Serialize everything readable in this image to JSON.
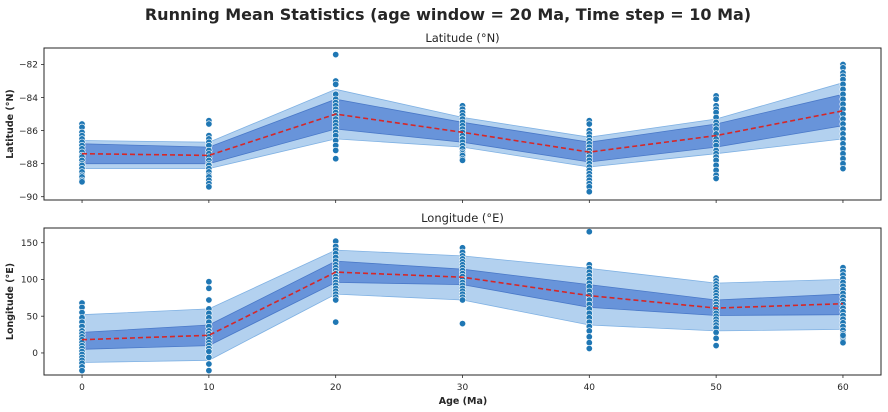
{
  "suptitle": "Running Mean Statistics (age window = 20 Ma, Time step = 10 Ma)",
  "xlabel": "Age (Ma)",
  "colors": {
    "points": "#1f77b4",
    "point_edge": "#ffffff",
    "outer_band": "#a6c9ec",
    "inner_band": "#5b8ad6",
    "mean_line": "#d62728"
  },
  "chart_data": [
    {
      "type": "scatter",
      "title": "Latitude (°N)",
      "ylabel": "Latitude (°N)",
      "xlim": [
        -3,
        63
      ],
      "ylim": [
        -90.2,
        -81
      ],
      "xticks": [
        0,
        10,
        20,
        30,
        40,
        50,
        60
      ],
      "yticks": [
        -90,
        -88,
        -86,
        -84,
        -82
      ],
      "show_xticklabels": false,
      "running_mean": {
        "x": [
          0,
          10,
          20,
          30,
          40,
          50,
          60
        ],
        "mean": [
          -87.4,
          -87.5,
          -85.0,
          -86.1,
          -87.3,
          -86.3,
          -84.8
        ],
        "inner_band": [
          [
            -88.0,
            -86.8
          ],
          [
            -88.0,
            -87.0
          ],
          [
            -85.9,
            -84.1
          ],
          [
            -86.7,
            -85.5
          ],
          [
            -87.9,
            -86.7
          ],
          [
            -87.0,
            -85.6
          ],
          [
            -85.7,
            -83.8
          ]
        ],
        "outer_band": [
          [
            -88.3,
            -86.6
          ],
          [
            -88.3,
            -86.7
          ],
          [
            -86.5,
            -83.5
          ],
          [
            -87.0,
            -85.2
          ],
          [
            -88.2,
            -86.4
          ],
          [
            -87.4,
            -85.3
          ],
          [
            -86.5,
            -83.1
          ]
        ]
      },
      "points": {
        "x": [
          0,
          0,
          0,
          0,
          0,
          0,
          0,
          0,
          0,
          0,
          0,
          0,
          0,
          0,
          0,
          0,
          0,
          0,
          0,
          0,
          10,
          10,
          10,
          10,
          10,
          10,
          10,
          10,
          10,
          10,
          10,
          10,
          10,
          10,
          10,
          10,
          10,
          10,
          10,
          20,
          20,
          20,
          20,
          20,
          20,
          20,
          20,
          20,
          20,
          20,
          20,
          20,
          20,
          20,
          20,
          20,
          20,
          20,
          20,
          30,
          30,
          30,
          30,
          30,
          30,
          30,
          30,
          30,
          30,
          30,
          30,
          30,
          30,
          30,
          30,
          30,
          30,
          30,
          40,
          40,
          40,
          40,
          40,
          40,
          40,
          40,
          40,
          40,
          40,
          40,
          40,
          40,
          40,
          40,
          40,
          40,
          40,
          40,
          40,
          50,
          50,
          50,
          50,
          50,
          50,
          50,
          50,
          50,
          50,
          50,
          50,
          50,
          50,
          50,
          50,
          50,
          50,
          50,
          50,
          50,
          60,
          60,
          60,
          60,
          60,
          60,
          60,
          60,
          60,
          60,
          60,
          60,
          60,
          60,
          60,
          60,
          60,
          60,
          60,
          60,
          60,
          60,
          60
        ],
        "y": [
          -85.6,
          -85.8,
          -86.1,
          -86.3,
          -86.5,
          -86.7,
          -86.9,
          -87.1,
          -87.3,
          -87.5,
          -87.6,
          -87.8,
          -88.0,
          -88.1,
          -88.3,
          -88.5,
          -88.7,
          -88.8,
          -89.0,
          -89.1,
          -85.4,
          -85.6,
          -86.3,
          -86.5,
          -86.7,
          -86.9,
          -87.2,
          -87.4,
          -87.6,
          -87.8,
          -88.0,
          -88.1,
          -88.3,
          -88.5,
          -88.7,
          -88.8,
          -89.0,
          -89.2,
          -89.4,
          -81.4,
          -83.0,
          -83.2,
          -83.8,
          -84.1,
          -84.3,
          -84.5,
          -84.7,
          -84.9,
          -85.1,
          -85.3,
          -85.5,
          -85.7,
          -85.9,
          -86.1,
          -86.3,
          -86.6,
          -86.9,
          -87.2,
          -87.7,
          -84.5,
          -84.7,
          -84.9,
          -85.1,
          -85.3,
          -85.5,
          -85.7,
          -85.9,
          -86.1,
          -86.3,
          -86.5,
          -86.7,
          -86.9,
          -87.1,
          -87.3,
          -87.4,
          -87.5,
          -87.7,
          -87.8,
          -85.4,
          -85.6,
          -86.0,
          -86.2,
          -86.4,
          -86.6,
          -86.8,
          -87.0,
          -87.2,
          -87.4,
          -87.6,
          -87.8,
          -88.0,
          -88.2,
          -88.4,
          -88.6,
          -88.8,
          -89.0,
          -89.2,
          -89.4,
          -89.7,
          -83.9,
          -84.1,
          -84.5,
          -84.7,
          -84.9,
          -85.2,
          -85.5,
          -85.7,
          -85.9,
          -86.2,
          -86.5,
          -86.7,
          -86.9,
          -87.2,
          -87.4,
          -87.6,
          -87.8,
          -88.1,
          -88.4,
          -88.7,
          -88.9,
          -82.0,
          -82.2,
          -82.5,
          -82.7,
          -82.9,
          -83.2,
          -83.5,
          -83.8,
          -84.1,
          -84.4,
          -84.7,
          -85.0,
          -85.3,
          -85.6,
          -85.9,
          -86.2,
          -86.5,
          -86.8,
          -87.1,
          -87.4,
          -87.7,
          -88.0,
          -88.3
        ]
      }
    },
    {
      "type": "scatter",
      "title": "Longitude (°E)",
      "ylabel": "Longitude (°E)",
      "xlim": [
        -3,
        63
      ],
      "ylim": [
        -30,
        170
      ],
      "xticks": [
        0,
        10,
        20,
        30,
        40,
        50,
        60
      ],
      "yticks": [
        0,
        50,
        100,
        150
      ],
      "show_xticklabels": true,
      "running_mean": {
        "x": [
          0,
          10,
          20,
          30,
          40,
          50,
          60
        ],
        "mean": [
          18,
          24,
          110,
          103,
          78,
          61,
          67
        ],
        "inner_band": [
          [
            5,
            28
          ],
          [
            10,
            38
          ],
          [
            96,
            125
          ],
          [
            93,
            114
          ],
          [
            62,
            93
          ],
          [
            51,
            72
          ],
          [
            52,
            80
          ]
        ],
        "outer_band": [
          [
            -13,
            52
          ],
          [
            -10,
            60
          ],
          [
            80,
            140
          ],
          [
            72,
            132
          ],
          [
            38,
            115
          ],
          [
            30,
            95
          ],
          [
            32,
            100
          ]
        ]
      },
      "points": {
        "x": [
          0,
          0,
          0,
          0,
          0,
          0,
          0,
          0,
          0,
          0,
          0,
          0,
          0,
          0,
          0,
          0,
          0,
          0,
          0,
          0,
          10,
          10,
          10,
          10,
          10,
          10,
          10,
          10,
          10,
          10,
          10,
          10,
          10,
          10,
          10,
          10,
          10,
          10,
          10,
          20,
          20,
          20,
          20,
          20,
          20,
          20,
          20,
          20,
          20,
          20,
          20,
          20,
          20,
          20,
          20,
          20,
          20,
          20,
          20,
          30,
          30,
          30,
          30,
          30,
          30,
          30,
          30,
          30,
          30,
          30,
          30,
          30,
          30,
          30,
          30,
          30,
          30,
          30,
          40,
          40,
          40,
          40,
          40,
          40,
          40,
          40,
          40,
          40,
          40,
          40,
          40,
          40,
          40,
          40,
          40,
          40,
          40,
          40,
          40,
          50,
          50,
          50,
          50,
          50,
          50,
          50,
          50,
          50,
          50,
          50,
          50,
          50,
          50,
          50,
          50,
          50,
          50,
          50,
          50,
          50,
          60,
          60,
          60,
          60,
          60,
          60,
          60,
          60,
          60,
          60,
          60,
          60,
          60,
          60,
          60,
          60,
          60,
          60,
          60,
          60,
          60,
          60,
          60
        ],
        "y": [
          68,
          62,
          55,
          48,
          42,
          36,
          30,
          26,
          22,
          18,
          14,
          10,
          6,
          2,
          -2,
          -6,
          -10,
          -14,
          -19,
          -24,
          97,
          88,
          72,
          60,
          54,
          48,
          42,
          36,
          30,
          26,
          22,
          18,
          14,
          10,
          6,
          2,
          -6,
          -15,
          -24,
          152,
          145,
          140,
          135,
          130,
          125,
          120,
          116,
          112,
          108,
          104,
          100,
          96,
          92,
          88,
          84,
          80,
          76,
          72,
          42,
          143,
          137,
          132,
          128,
          124,
          120,
          116,
          112,
          108,
          104,
          100,
          96,
          92,
          88,
          84,
          80,
          76,
          72,
          40,
          165,
          120,
          115,
          110,
          105,
          100,
          95,
          90,
          84,
          78,
          72,
          66,
          60,
          54,
          48,
          42,
          36,
          30,
          22,
          14,
          6,
          102,
          98,
          94,
          90,
          86,
          82,
          78,
          74,
          70,
          66,
          62,
          58,
          54,
          50,
          46,
          42,
          38,
          34,
          28,
          20,
          10,
          116,
          111,
          106,
          101,
          96,
          91,
          86,
          81,
          76,
          71,
          66,
          61,
          56,
          51,
          46,
          41,
          36,
          31,
          26,
          21,
          16,
          14,
          24
        ]
      }
    }
  ]
}
